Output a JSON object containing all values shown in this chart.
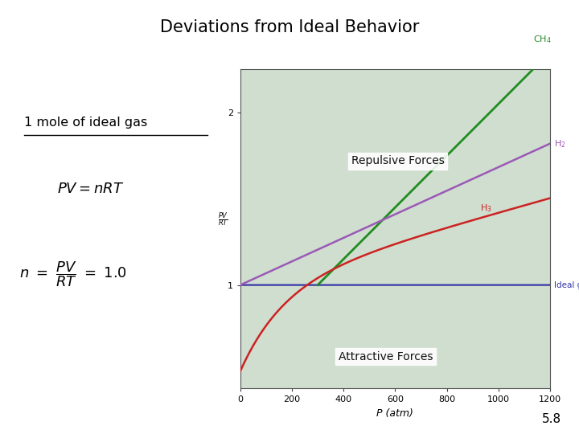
{
  "title": "Deviations from Ideal Behavior",
  "title_fontsize": 15,
  "title_color": "#000000",
  "background_color": "#ffffff",
  "slide_number": "5.8",
  "graph": {
    "bg_color": "#cfdecf",
    "shadow_color": "#a8c0a8",
    "xlim": [
      0,
      1200
    ],
    "ylim": [
      0.4,
      2.25
    ],
    "xlabel": "P (atm)",
    "xticks": [
      0,
      200,
      400,
      600,
      800,
      1000,
      1200
    ],
    "yticks": [
      1.0,
      2.0
    ],
    "ideal_gas_label": "Ideal gas",
    "ideal_gas_color": "#3333aa",
    "ch4_color": "#228B22",
    "h2_color": "#9b59b6",
    "n2_color": "#cc2222",
    "repulsive_label": "Repulsive Forces",
    "attractive_label": "Attractive Forces"
  }
}
